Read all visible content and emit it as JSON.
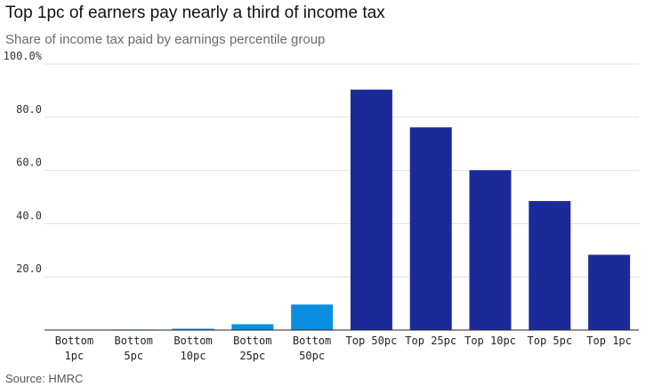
{
  "chart_data": {
    "type": "bar",
    "title": "Top 1pc of earners pay nearly a third of income tax",
    "subtitle": "Share of income tax paid by earnings percentile group",
    "source": "Source: HMRC",
    "categories": [
      [
        "Bottom",
        "1pc"
      ],
      [
        "Bottom",
        "5pc"
      ],
      [
        "Bottom",
        "10pc"
      ],
      [
        "Bottom",
        "25pc"
      ],
      [
        "Bottom",
        "50pc"
      ],
      [
        "Top 50pc"
      ],
      [
        "Top 25pc"
      ],
      [
        "Top 10pc"
      ],
      [
        "Top 5pc"
      ],
      [
        "Top 1pc"
      ]
    ],
    "values": [
      0.1,
      0.2,
      0.5,
      2.2,
      9.6,
      90.4,
      76.2,
      60.1,
      48.5,
      28.3
    ],
    "colors": [
      "#0a8fe0",
      "#0a8fe0",
      "#0a8fe0",
      "#0a8fe0",
      "#0a8fe0",
      "#1c2a99",
      "#1c2a99",
      "#1c2a99",
      "#1c2a99",
      "#1c2a99"
    ],
    "ylim": [
      0,
      100
    ],
    "yticks": [
      {
        "value": 20,
        "label": "20.0"
      },
      {
        "value": 40,
        "label": "40.0"
      },
      {
        "value": 60,
        "label": "60.0"
      },
      {
        "value": 80,
        "label": "80.0"
      },
      {
        "value": 100,
        "label": "100.0%"
      }
    ],
    "grid": true,
    "gridline_color": "#e0e0e0",
    "axis_color": "#222222"
  }
}
